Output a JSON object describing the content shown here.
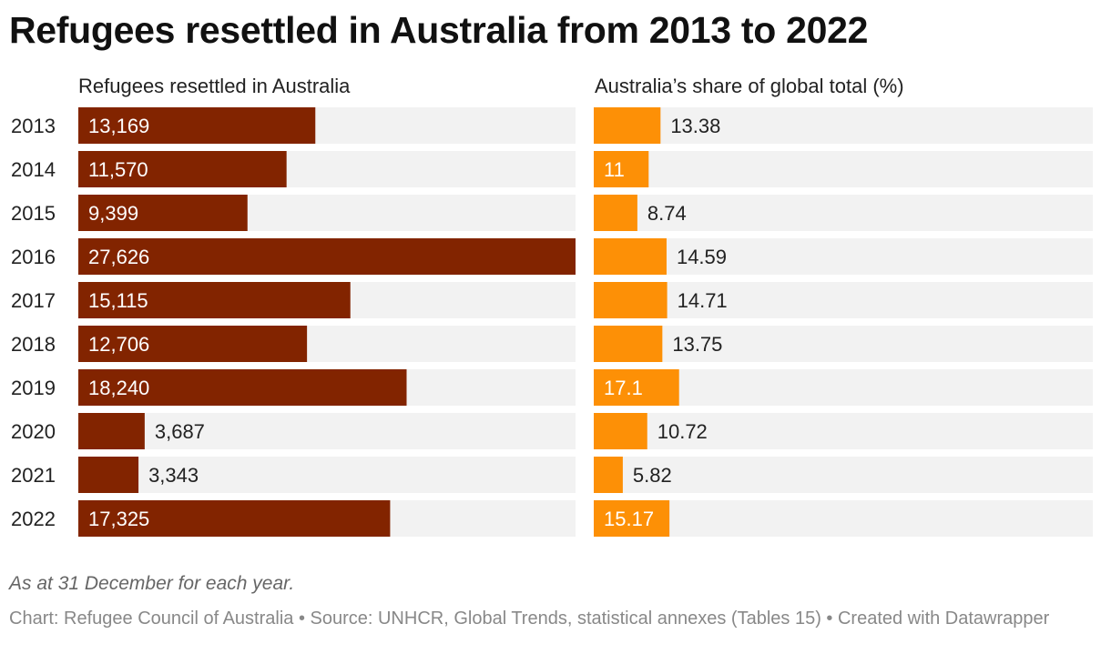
{
  "header": {
    "title": "Refugees resettled in Australia from 2013 to 2022"
  },
  "colors": {
    "left_bar": "#822400",
    "right_bar": "#fd9006",
    "track": "#f2f2f2"
  },
  "chart_data": [
    {
      "type": "bar",
      "orientation": "horizontal",
      "title": "Refugees resettled in Australia",
      "categories": [
        "2013",
        "2014",
        "2015",
        "2016",
        "2017",
        "2018",
        "2019",
        "2020",
        "2021",
        "2022"
      ],
      "values": [
        13169,
        11570,
        9399,
        27626,
        15115,
        12706,
        18240,
        3687,
        3343,
        17325
      ],
      "labels": [
        "13,169",
        "11,570",
        "9,399",
        "27,626",
        "15,115",
        "12,706",
        "18,240",
        "3,687",
        "3,343",
        "17,325"
      ],
      "xlim": [
        0,
        27626
      ]
    },
    {
      "type": "bar",
      "orientation": "horizontal",
      "title": "Australia’s share of global total (%)",
      "categories": [
        "2013",
        "2014",
        "2015",
        "2016",
        "2017",
        "2018",
        "2019",
        "2020",
        "2021",
        "2022"
      ],
      "values": [
        13.38,
        11,
        8.74,
        14.59,
        14.71,
        13.75,
        17.1,
        10.72,
        5.82,
        15.17
      ],
      "labels": [
        "13.38",
        "11",
        "8.74",
        "14.59",
        "14.71",
        "13.75",
        "17.1",
        "10.72",
        "5.82",
        "15.17"
      ],
      "xlim": [
        0,
        100
      ]
    }
  ],
  "notes": "As at 31 December for each year.",
  "footer": "Chart: Refugee Council of Australia • Source: UNHCR, Global Trends, statistical annexes (Tables 15) • Created with Datawrapper"
}
